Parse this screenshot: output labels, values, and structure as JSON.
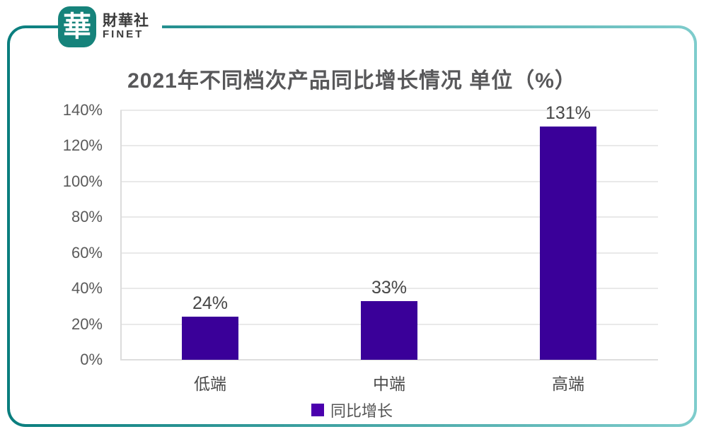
{
  "logo": {
    "seal_char": "華",
    "name_cn": "財華社",
    "name_en": "FINET"
  },
  "chart_data": {
    "type": "bar",
    "title": "2021年不同档次产品同比增长情况 单位（%）",
    "categories": [
      "低端",
      "中端",
      "高端"
    ],
    "series": [
      {
        "name": "同比增长",
        "values": [
          24,
          33,
          131
        ]
      }
    ],
    "data_labels": [
      "24%",
      "33%",
      "131%"
    ],
    "y_tick_labels": [
      "0%",
      "20%",
      "40%",
      "60%",
      "80%",
      "100%",
      "120%",
      "140%"
    ],
    "ylim": [
      0,
      140
    ],
    "y_tick_step": 20,
    "xlabel": "",
    "ylabel": "",
    "grid": true,
    "legend_position": "bottom"
  },
  "colors": {
    "bar_purple": "#3A0099",
    "legend_purple": "#4B00AE",
    "teal_dark": "#0A7E7E",
    "teal_light": "#7ECCCC",
    "seal_teal": "#16837B"
  }
}
